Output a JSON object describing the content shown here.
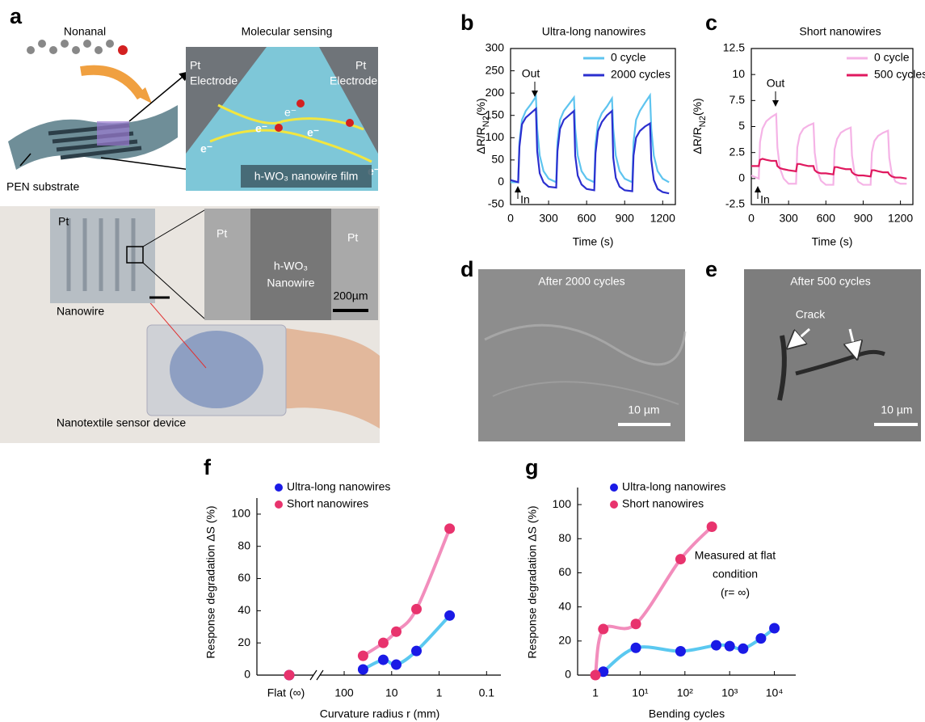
{
  "panel_labels": [
    "a",
    "b",
    "c",
    "d",
    "e",
    "f",
    "g"
  ],
  "panel_a": {
    "molecule": "Nonanal",
    "inset_title": "Molecular sensing",
    "electrode_left": [
      "Pt",
      "Electrode"
    ],
    "electrode_right": [
      "Pt",
      "Electrode"
    ],
    "electrons": [
      "e⁻",
      "e⁻",
      "e⁻",
      "e⁻",
      "e⁻"
    ],
    "film": "h-WO₃ nanowire film",
    "substrate": "PEN substrate",
    "photo_labels": {
      "pt": "Pt",
      "nanowire": "Nanowire"
    },
    "sem_labels": {
      "pt_left": "Pt",
      "material": "h-WO₃",
      "material_2": "Nanowire",
      "pt_right": "Pt",
      "scale": "200µm"
    },
    "caption": "Nanotextile sensor device"
  },
  "panel_d": {
    "caption": "After 2000 cycles",
    "scale": "10 µm"
  },
  "panel_e": {
    "caption": "After 500 cycles",
    "annotation": "Crack",
    "scale": "10 µm"
  },
  "chart_data": [
    {
      "type": "line",
      "title": "Ultra-long nanowires",
      "xlabel": "Time (s)",
      "ylabel": [
        "ΔR/R",
        "N2",
        "(%)"
      ],
      "x": [
        0,
        60,
        70,
        90,
        120,
        160,
        200,
        210,
        230,
        260,
        300,
        360,
        370,
        390,
        420,
        460,
        500,
        510,
        530,
        560,
        600,
        660,
        670,
        690,
        720,
        760,
        800,
        810,
        830,
        860,
        900,
        960,
        970,
        990,
        1020,
        1060,
        1100,
        1110,
        1130,
        1160,
        1200,
        1250
      ],
      "series": [
        {
          "name": "0 cycle",
          "color": "#5ec4ef",
          "values": [
            0,
            0,
            90,
            140,
            160,
            175,
            192,
            120,
            60,
            25,
            8,
            0,
            90,
            140,
            160,
            175,
            190,
            120,
            60,
            25,
            8,
            0,
            85,
            135,
            155,
            170,
            188,
            120,
            60,
            25,
            8,
            0,
            90,
            140,
            160,
            178,
            195,
            120,
            60,
            25,
            8,
            0
          ]
        },
        {
          "name": "2000 cycles",
          "color": "#2b2fcf",
          "values": [
            5,
            0,
            80,
            130,
            145,
            155,
            165,
            70,
            20,
            0,
            -10,
            -12,
            70,
            120,
            140,
            150,
            160,
            60,
            15,
            -5,
            -15,
            -18,
            65,
            115,
            135,
            150,
            160,
            55,
            10,
            -10,
            -18,
            -20,
            60,
            100,
            115,
            125,
            132,
            50,
            5,
            -15,
            -22,
            -25
          ]
        }
      ],
      "xlim": [
        0,
        1300
      ],
      "ylim": [
        -50,
        300
      ],
      "xticks": [
        0,
        300,
        600,
        900,
        1200
      ],
      "yticks": [
        -50,
        0,
        50,
        100,
        150,
        200,
        250,
        300
      ],
      "annotations": [
        "Out",
        "In"
      ],
      "legend": "upper right"
    },
    {
      "type": "line",
      "title": "Short nanowires",
      "xlabel": "Time (s)",
      "ylabel": [
        "ΔR/R",
        "N2",
        "(%)"
      ],
      "x": [
        0,
        60,
        70,
        90,
        120,
        160,
        200,
        210,
        230,
        260,
        300,
        360,
        370,
        390,
        420,
        460,
        500,
        510,
        530,
        560,
        600,
        660,
        670,
        690,
        720,
        760,
        800,
        810,
        830,
        860,
        900,
        960,
        970,
        990,
        1020,
        1060,
        1100,
        1110,
        1130,
        1160,
        1200,
        1250
      ],
      "series": [
        {
          "name": "0 cycle",
          "color": "#f5b3e6",
          "values": [
            0.3,
            0,
            3.5,
            4.8,
            5.5,
            5.9,
            6.2,
            3,
            1,
            0,
            -0.5,
            -0.5,
            3,
            4.2,
            4.8,
            5.1,
            5.3,
            2.5,
            0.8,
            -0.2,
            -0.6,
            -0.6,
            2.8,
            3.8,
            4.4,
            4.7,
            4.9,
            2.2,
            0.6,
            -0.3,
            -0.6,
            -0.6,
            2.5,
            3.6,
            4.1,
            4.4,
            4.6,
            2,
            0.5,
            -0.3,
            -0.5,
            -0.5
          ]
        },
        {
          "name": "500 cycles",
          "color": "#e0195f",
          "values": [
            1.2,
            1.2,
            1.8,
            1.9,
            1.8,
            1.7,
            1.7,
            1.2,
            1,
            0.9,
            0.8,
            0.7,
            1.4,
            1.4,
            1.3,
            1.2,
            1.2,
            0.8,
            0.6,
            0.5,
            0.5,
            0.4,
            1.1,
            1.1,
            1,
            0.9,
            0.9,
            0.6,
            0.4,
            0.3,
            0.3,
            0.2,
            0.8,
            0.8,
            0.7,
            0.6,
            0.6,
            0.4,
            0.2,
            0.1,
            0.1,
            0
          ]
        }
      ],
      "xlim": [
        0,
        1300
      ],
      "ylim": [
        -2.5,
        12.5
      ],
      "xticks": [
        0,
        300,
        600,
        900,
        1200
      ],
      "yticks": [
        -2.5,
        0,
        2.5,
        5,
        7.5,
        10,
        12.5
      ],
      "annotations": [
        "Out",
        "In"
      ],
      "legend": "upper right"
    },
    {
      "type": "scatter",
      "xlabel": "Curvature radius r (mm)",
      "ylabel": "Response degradation ΔS (%)",
      "xscale": "log",
      "flat_label": "Flat (∞)",
      "xlim": [
        300,
        0.05
      ],
      "ylim": [
        0,
        110
      ],
      "xticks": [
        100,
        10,
        1,
        0.1
      ],
      "yticks": [
        0,
        20,
        40,
        60,
        80,
        100
      ],
      "legend": "upper left",
      "series": [
        {
          "name": "Ultra-long nanowires",
          "color": "#1a1ae6",
          "line_color": "#5ac8f0",
          "flat_value": 0,
          "x": [
            40,
            15,
            8,
            3,
            0.6
          ],
          "values": [
            3.5,
            9.5,
            6.5,
            15,
            37
          ]
        },
        {
          "name": "Short nanowires",
          "color": "#e8336d",
          "line_color": "#f28dbc",
          "flat_value": 0,
          "x": [
            40,
            15,
            8,
            3,
            0.6
          ],
          "values": [
            12,
            20,
            27,
            41,
            91
          ]
        }
      ]
    },
    {
      "type": "scatter",
      "xlabel": "Bending cycles",
      "ylabel": "Response degradation ΔS (%)",
      "xscale": "log",
      "xlim": [
        0.4,
        30000
      ],
      "ylim": [
        0,
        110
      ],
      "xticks": [
        1,
        {
          "value": 10,
          "label": "10¹"
        },
        {
          "value": 100,
          "label": "10²"
        },
        {
          "value": 1000,
          "label": "10³"
        },
        {
          "value": 10000,
          "label": "10⁴"
        }
      ],
      "yticks": [
        0,
        20,
        40,
        60,
        80,
        100
      ],
      "annotation": [
        "Measured at flat",
        "condition",
        "(r= ∞)"
      ],
      "legend": "upper left",
      "series": [
        {
          "name": "Ultra-long nanowires",
          "color": "#1a1ae6",
          "line_color": "#5ac8f0",
          "x": [
            1.5,
            8,
            80,
            500,
            1000,
            2000,
            5000,
            10000
          ],
          "values": [
            2,
            16,
            14,
            17.5,
            17,
            15.5,
            21.5,
            27.5
          ]
        },
        {
          "name": "Short nanowires",
          "color": "#e8336d",
          "line_color": "#f28dbc",
          "x": [
            1,
            1.5,
            8,
            80,
            400
          ],
          "values": [
            0,
            27,
            30,
            68,
            87
          ]
        }
      ]
    }
  ]
}
